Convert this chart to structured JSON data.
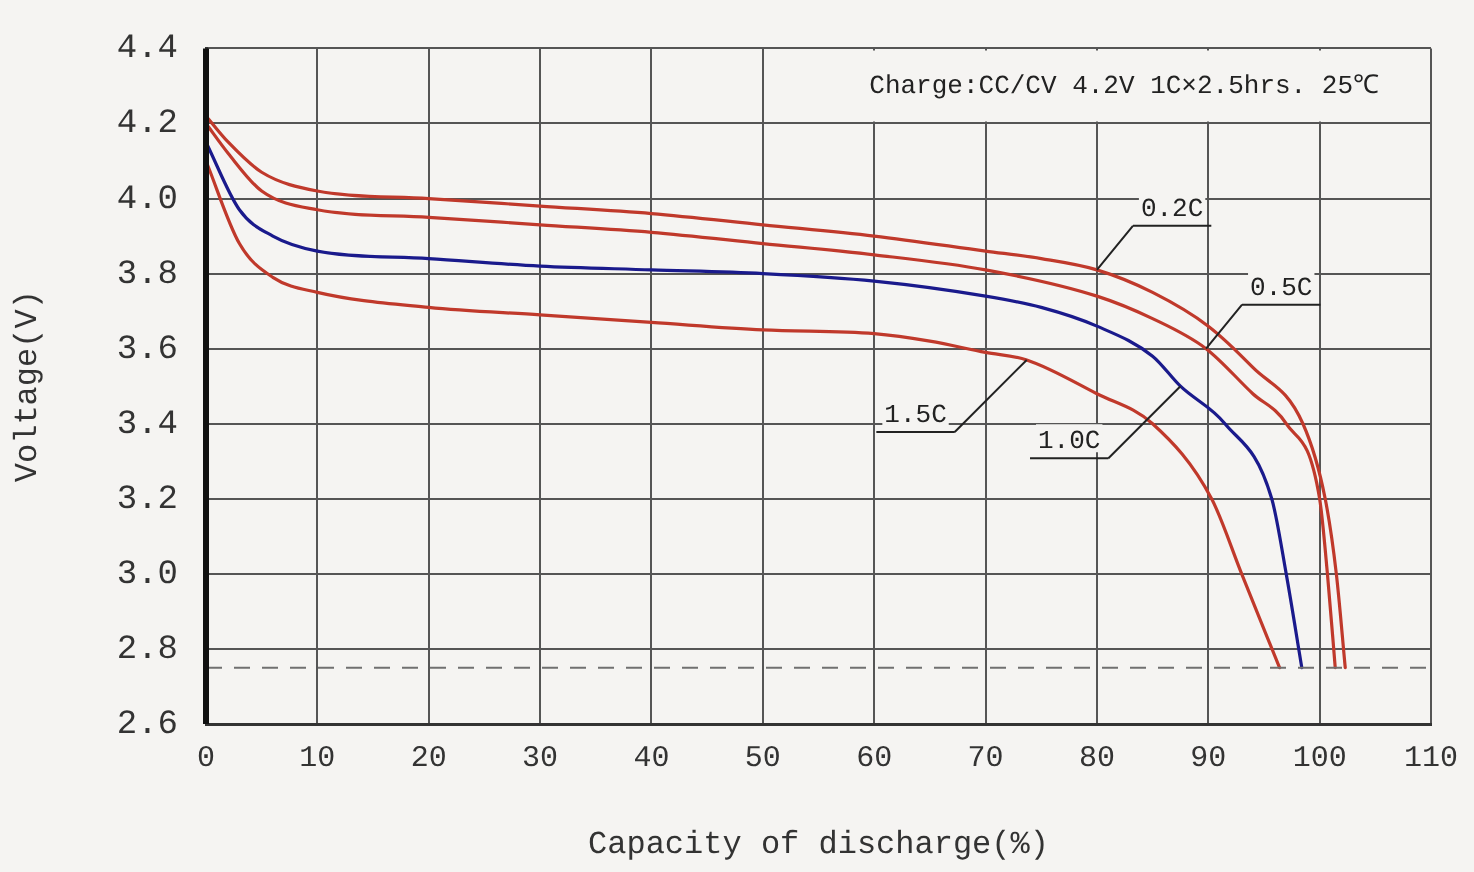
{
  "chart_data": {
    "type": "line",
    "xlabel": "Capacity of discharge(%)",
    "ylabel": "Voltage(V)",
    "xlim": [
      0,
      110
    ],
    "xticks": [
      0,
      10,
      20,
      30,
      40,
      50,
      60,
      70,
      80,
      90,
      100,
      110
    ],
    "ylim": [
      2.6,
      4.4
    ],
    "yticks": [
      2.6,
      2.8,
      {
        "value": 3,
        "label": "3.0"
      },
      3.2,
      3.4,
      3.6,
      3.8,
      {
        "value": 4,
        "label": "4.0"
      },
      4.2,
      4.4
    ],
    "grid": true,
    "legend": false,
    "marker": "none",
    "line_style": "solid",
    "series": [
      {
        "color": "#c0392b",
        "x": [
          0,
          2,
          5,
          10,
          20,
          30,
          40,
          50,
          60,
          70,
          75,
          80,
          85,
          90,
          94,
          98.5,
          100.5,
          101.5,
          102.3
        ],
        "values": [
          4.22,
          4.15,
          4.07,
          4.02,
          4.0,
          3.98,
          3.96,
          3.93,
          3.9,
          3.86,
          3.84,
          3.81,
          3.75,
          3.66,
          3.55,
          3.4,
          3.2,
          3.0,
          2.75
        ]
      },
      {
        "color": "#c0392b",
        "x": [
          0,
          2,
          5,
          10,
          20,
          30,
          40,
          50,
          60,
          70,
          80,
          85,
          89.8,
          94,
          97,
          100,
          100.7,
          101.4
        ],
        "values": [
          4.2,
          4.12,
          4.02,
          3.97,
          3.95,
          3.93,
          3.91,
          3.88,
          3.85,
          3.81,
          3.74,
          3.68,
          3.6,
          3.48,
          3.4,
          3.2,
          3.0,
          2.75
        ]
      },
      {
        "color": "#1a1a8c",
        "x": [
          0,
          3,
          6,
          10,
          20,
          30,
          40,
          50,
          60,
          70,
          75,
          80,
          85,
          87.5,
          91.5,
          95.7,
          97,
          98.4
        ],
        "values": [
          4.15,
          3.97,
          3.9,
          3.86,
          3.84,
          3.82,
          3.81,
          3.8,
          3.78,
          3.74,
          3.71,
          3.66,
          3.58,
          3.5,
          3.4,
          3.2,
          3.0,
          2.75
        ]
      },
      {
        "color": "#c0392b",
        "x": [
          0,
          3,
          6,
          10,
          20,
          30,
          40,
          50,
          60,
          65,
          70,
          73.7,
          80,
          85,
          90.3,
          93,
          96.4
        ],
        "values": [
          4.1,
          3.88,
          3.79,
          3.75,
          3.71,
          3.69,
          3.67,
          3.65,
          3.64,
          3.62,
          3.59,
          3.57,
          3.48,
          3.4,
          3.2,
          3.0,
          2.75
        ]
      }
    ],
    "ref_lines": [
      {
        "axis": "y",
        "value": 2.75,
        "color": "#707070",
        "line_style": "dashed"
      }
    ],
    "annotations": [
      "Charge:CC/CV 4.2V 1C×2.5hrs. 25℃",
      {
        "text": "0.2C",
        "x": 80,
        "y": 3.81
      },
      {
        "text": "0.5C",
        "x": 89.8,
        "y": 3.6
      },
      {
        "text": "1.5C",
        "x": 73.7,
        "y": 3.57
      },
      {
        "text": "1.0C",
        "x": 87.5,
        "y": 3.5
      }
    ]
  }
}
